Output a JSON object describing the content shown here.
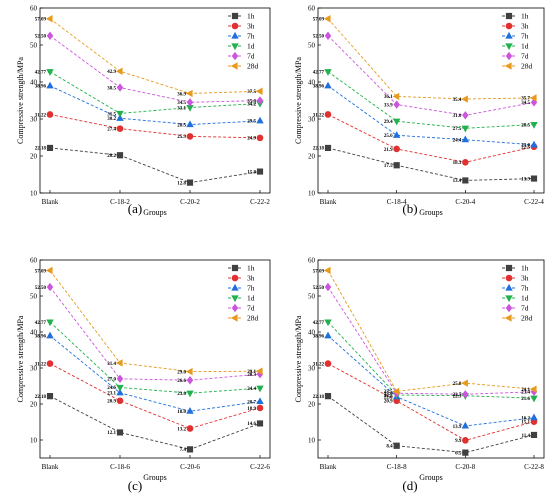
{
  "figure": {
    "colors": {
      "1h": "#404040",
      "3h": "#e03030",
      "7h": "#1f6fdc",
      "1d": "#22b14c",
      "7d": "#cc55dd",
      "28d": "#e69a1e"
    }
  },
  "chart_data": [
    {
      "type": "line",
      "panel_label": "(a)",
      "xlabel": "Groups",
      "ylabel": "Compressive strength/MPa",
      "categories": [
        "Blank",
        "C-18-2",
        "C-20-2",
        "C-22-2"
      ],
      "ylim": [
        10,
        60
      ],
      "yticks": [
        "10",
        "20",
        "30",
        "40",
        "50",
        "60"
      ],
      "grid": false,
      "legend_placement": "top-right",
      "series": [
        {
          "name": "1h",
          "marker": "square",
          "values": [
            22.18,
            20.2,
            12.8,
            15.8
          ],
          "labels": [
            "22.18",
            "20.2",
            "12.8",
            "15.8"
          ]
        },
        {
          "name": "3h",
          "marker": "circle",
          "values": [
            31.22,
            27.4,
            25.3,
            24.9
          ],
          "labels": [
            "31.22",
            "27.4",
            "25.3",
            "24.9"
          ]
        },
        {
          "name": "7h",
          "marker": "triangle-up",
          "values": [
            38.96,
            30.2,
            28.5,
            29.5
          ],
          "labels": [
            "38.96",
            "30.2",
            "28.5",
            "29.5"
          ]
        },
        {
          "name": "1d",
          "marker": "triangle-down",
          "values": [
            42.77,
            31.5,
            33.1,
            34.2
          ],
          "labels": [
            "42.77",
            "31.5",
            "33.1",
            "34.2"
          ]
        },
        {
          "name": "7d",
          "marker": "diamond",
          "values": [
            52.5,
            38.5,
            34.5,
            35.0
          ],
          "labels": [
            "52.50",
            "38.5",
            "34.5",
            "35.0"
          ]
        },
        {
          "name": "28d",
          "marker": "triangle-left",
          "values": [
            57.09,
            42.9,
            36.9,
            37.5
          ],
          "labels": [
            "57.09",
            "42.9",
            "36.9",
            "37.5"
          ]
        }
      ]
    },
    {
      "type": "line",
      "panel_label": "(b)",
      "xlabel": "Groups",
      "ylabel": "Compressive strength/MPa",
      "categories": [
        "Blank",
        "C-18-4",
        "C-20-4",
        "C-22-4"
      ],
      "ylim": [
        10,
        60
      ],
      "yticks": [
        "10",
        "20",
        "30",
        "40",
        "50",
        "60"
      ],
      "grid": false,
      "legend_placement": "top-right",
      "series": [
        {
          "name": "1h",
          "marker": "square",
          "values": [
            22.18,
            17.5,
            13.4,
            13.9
          ],
          "labels": [
            "22.18",
            "17.5",
            "13.4",
            "13.9"
          ]
        },
        {
          "name": "3h",
          "marker": "circle",
          "values": [
            31.22,
            21.9,
            18.3,
            22.5
          ],
          "labels": [
            "31.22",
            "21.9",
            "18.3",
            "22.5"
          ]
        },
        {
          "name": "7h",
          "marker": "triangle-up",
          "values": [
            38.96,
            25.6,
            24.4,
            23.0
          ],
          "labels": [
            "38.96",
            "25.6",
            "24.4",
            "23.0"
          ]
        },
        {
          "name": "1d",
          "marker": "triangle-down",
          "values": [
            42.77,
            29.4,
            27.5,
            28.5
          ],
          "labels": [
            "42.77",
            "29.4",
            "27.5",
            "28.5"
          ]
        },
        {
          "name": "7d",
          "marker": "diamond",
          "values": [
            52.5,
            33.9,
            31.0,
            34.5
          ],
          "labels": [
            "52.50",
            "33.9",
            "31.0",
            "34.5"
          ]
        },
        {
          "name": "28d",
          "marker": "triangle-left",
          "values": [
            57.09,
            36.1,
            35.4,
            35.7
          ],
          "labels": [
            "57.09",
            "36.1",
            "35.4",
            "35.7"
          ]
        }
      ]
    },
    {
      "type": "line",
      "panel_label": "(c)",
      "xlabel": "Groups",
      "ylabel": "Compressive strength/MPa",
      "categories": [
        "Blank",
        "C-18-6",
        "C-20-6",
        "C-22-6"
      ],
      "ylim": [
        5,
        60
      ],
      "yticks": [
        "10",
        "20",
        "30",
        "40",
        "50",
        "60"
      ],
      "grid": false,
      "legend_placement": "top-right",
      "series": [
        {
          "name": "1h",
          "marker": "square",
          "values": [
            22.18,
            12.1,
            7.4,
            14.6
          ],
          "labels": [
            "22.18",
            "12.1",
            "7.4",
            "14.6"
          ]
        },
        {
          "name": "3h",
          "marker": "circle",
          "values": [
            31.22,
            20.9,
            13.2,
            18.9
          ],
          "labels": [
            "31.22",
            "20.9",
            "13.2",
            "18.9"
          ]
        },
        {
          "name": "7h",
          "marker": "triangle-up",
          "values": [
            38.96,
            23.1,
            18.0,
            20.7
          ],
          "labels": [
            "38.96",
            "23.1",
            "18.0",
            "20.7"
          ]
        },
        {
          "name": "1d",
          "marker": "triangle-down",
          "values": [
            42.77,
            24.6,
            23.0,
            24.4
          ],
          "labels": [
            "42.77",
            "24.6",
            "23.0",
            "24.4"
          ]
        },
        {
          "name": "7d",
          "marker": "diamond",
          "values": [
            52.5,
            27.0,
            26.6,
            28.3
          ],
          "labels": [
            "52.50",
            "27.0",
            "26.6",
            "28.3"
          ]
        },
        {
          "name": "28d",
          "marker": "triangle-left",
          "values": [
            57.09,
            31.4,
            29.0,
            29.1
          ],
          "labels": [
            "57.09",
            "31.4",
            "29.0",
            "29.1"
          ]
        }
      ]
    },
    {
      "type": "line",
      "panel_label": "(d)",
      "xlabel": "Groups",
      "ylabel": "Compressive strength/MPa",
      "categories": [
        "Blank",
        "C-18-8",
        "C-20-8",
        "C-22-8"
      ],
      "ylim": [
        5,
        60
      ],
      "yticks": [
        "10",
        "20",
        "30",
        "40",
        "50",
        "60"
      ],
      "grid": false,
      "legend_placement": "top-right",
      "series": [
        {
          "name": "1h",
          "marker": "square",
          "values": [
            22.18,
            8.4,
            6.5,
            11.4
          ],
          "labels": [
            "22.18",
            "8.4",
            "6.5",
            "11.4"
          ]
        },
        {
          "name": "3h",
          "marker": "circle",
          "values": [
            31.22,
            20.9,
            9.9,
            15.1
          ],
          "labels": [
            "31.22",
            "20.9",
            "9.9",
            "15.1"
          ]
        },
        {
          "name": "7h",
          "marker": "triangle-up",
          "values": [
            38.96,
            22.0,
            13.9,
            16.2
          ],
          "labels": [
            "38.96",
            "22.0",
            "13.9",
            "16.2"
          ]
        },
        {
          "name": "1d",
          "marker": "triangle-down",
          "values": [
            42.77,
            22.5,
            22.3,
            21.6
          ],
          "labels": [
            "42.77",
            "22.5",
            "22.3",
            "21.6"
          ]
        },
        {
          "name": "7d",
          "marker": "diamond",
          "values": [
            52.5,
            23.0,
            22.7,
            23.4
          ],
          "labels": [
            "52.50",
            "23.0",
            "22.7",
            "23.4"
          ]
        },
        {
          "name": "28d",
          "marker": "triangle-left",
          "values": [
            57.09,
            23.5,
            25.8,
            24.1
          ],
          "labels": [
            "57.09",
            "23.5",
            "25.8",
            "24.1"
          ]
        }
      ]
    }
  ]
}
